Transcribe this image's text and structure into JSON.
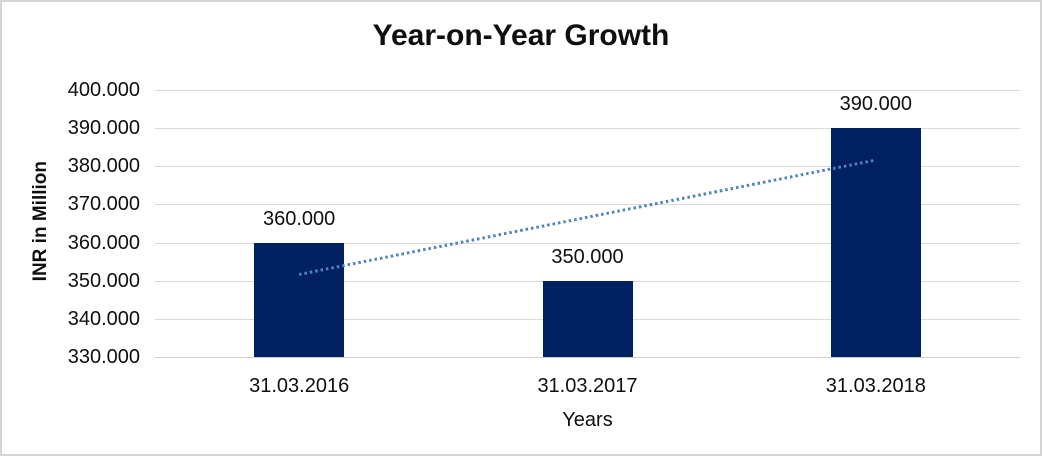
{
  "chart_data": {
    "type": "bar",
    "title": "Year-on-Year Growth",
    "xlabel": "Years",
    "ylabel": "INR in Million",
    "categories": [
      "31.03.2016",
      "31.03.2017",
      "31.03.2018"
    ],
    "values": [
      360,
      350,
      390
    ],
    "value_labels": [
      "360.000",
      "350.000",
      "390.000"
    ],
    "ylim": [
      330,
      400
    ],
    "ytick_step": 10,
    "ytick_labels": [
      "330.000",
      "340.000",
      "350.000",
      "360.000",
      "370.000",
      "380.000",
      "390.000",
      "400.000"
    ],
    "grid": true,
    "legend": "none",
    "trendline": {
      "type": "linear",
      "style": "dotted"
    },
    "colors": {
      "bar": "#002060",
      "trendline": "#4e83c4",
      "gridline": "#d9d9d9",
      "baseline": "#cfcfcf",
      "text": "#0f0f0f",
      "frame_border": "#d5d5d5"
    }
  }
}
